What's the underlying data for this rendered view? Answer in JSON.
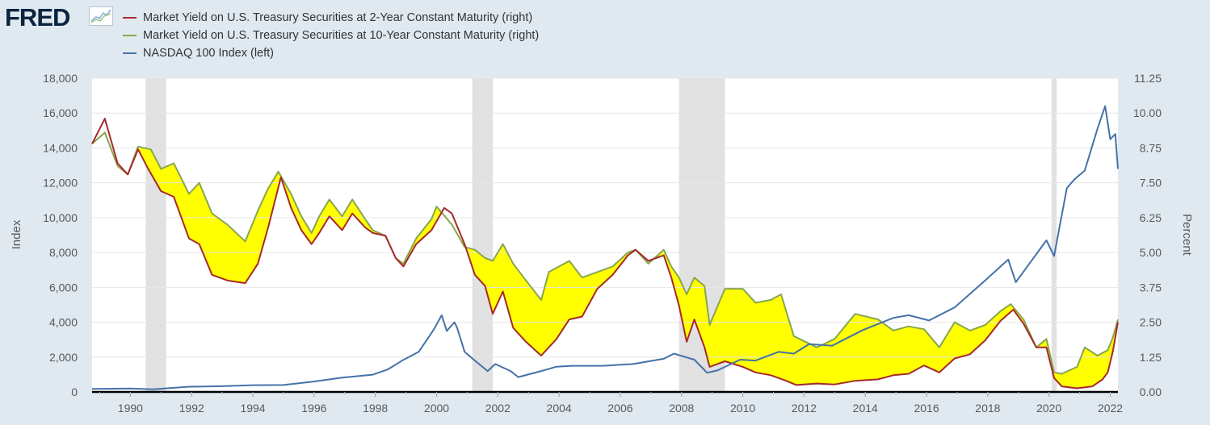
{
  "logo": {
    "text": "FRED",
    "icon": "fred-sparkline-icon"
  },
  "colors": {
    "background": "#e1e9f0",
    "plot_background": "#ffffff",
    "series_2y": "#a52a2a",
    "series_10y": "#89a54e",
    "series_nasdaq": "#4572a7",
    "fill_spread": "#ffff00",
    "recession": "#e1e1e1"
  },
  "chart_data": {
    "type": "line",
    "title": "",
    "x_axis": {
      "tick_labels": [
        "1990",
        "1992",
        "1994",
        "1996",
        "1998",
        "2000",
        "2002",
        "2004",
        "2006",
        "2008",
        "2010",
        "2012",
        "2014",
        "2016",
        "2018",
        "2020",
        "2022"
      ],
      "range": [
        "1988-10",
        "2022-04"
      ]
    },
    "y_left": {
      "label": "Index",
      "ticks": [
        "0",
        "2,000",
        "4,000",
        "6,000",
        "8,000",
        "10,000",
        "12,000",
        "14,000",
        "16,000",
        "18,000"
      ],
      "range": [
        0,
        18000
      ]
    },
    "y_right": {
      "label": "Percent",
      "ticks": [
        "0.00",
        "1.25",
        "2.50",
        "3.75",
        "5.00",
        "6.25",
        "7.50",
        "8.75",
        "10.00",
        "11.25"
      ],
      "range": [
        0,
        11.25
      ]
    },
    "legend": {
      "placement": "top-left",
      "entries": [
        "Market Yield on U.S. Treasury Securities at 2-Year Constant Maturity (right)",
        "Market Yield on U.S. Treasury Securities at 10-Year Constant Maturity (right)",
        "NASDAQ 100 Index (left)"
      ]
    },
    "recessions": [
      [
        "1990-07",
        "1991-03"
      ],
      [
        "2001-03",
        "2001-11"
      ],
      [
        "2007-12",
        "2009-06"
      ],
      [
        "2020-02",
        "2020-04"
      ]
    ],
    "series": [
      {
        "name": "Market Yield on U.S. Treasury Securities at 2-Year Constant Maturity (right)",
        "axis": "right",
        "points": [
          [
            "1988-10",
            8.9
          ],
          [
            "1989-03",
            9.8
          ],
          [
            "1989-08",
            8.2
          ],
          [
            "1989-12",
            7.8
          ],
          [
            "1990-04",
            8.7
          ],
          [
            "1990-08",
            8.0
          ],
          [
            "1991-01",
            7.2
          ],
          [
            "1991-06",
            7.0
          ],
          [
            "1991-12",
            5.5
          ],
          [
            "1992-04",
            5.3
          ],
          [
            "1992-09",
            4.2
          ],
          [
            "1993-03",
            4.0
          ],
          [
            "1993-10",
            3.9
          ],
          [
            "1994-03",
            4.6
          ],
          [
            "1994-07",
            5.9
          ],
          [
            "1994-12",
            7.7
          ],
          [
            "1995-04",
            6.6
          ],
          [
            "1995-08",
            5.8
          ],
          [
            "1995-12",
            5.3
          ],
          [
            "1996-03",
            5.7
          ],
          [
            "1996-07",
            6.3
          ],
          [
            "1996-12",
            5.8
          ],
          [
            "1997-04",
            6.4
          ],
          [
            "1997-09",
            5.9
          ],
          [
            "1997-12",
            5.7
          ],
          [
            "1998-05",
            5.6
          ],
          [
            "1998-09",
            4.8
          ],
          [
            "1998-12",
            4.5
          ],
          [
            "1999-05",
            5.3
          ],
          [
            "1999-11",
            5.8
          ],
          [
            "2000-04",
            6.6
          ],
          [
            "2000-07",
            6.4
          ],
          [
            "2000-12",
            5.3
          ],
          [
            "2001-04",
            4.2
          ],
          [
            "2001-08",
            3.8
          ],
          [
            "2001-11",
            2.8
          ],
          [
            "2002-03",
            3.6
          ],
          [
            "2002-07",
            2.3
          ],
          [
            "2002-12",
            1.8
          ],
          [
            "2003-06",
            1.3
          ],
          [
            "2003-12",
            1.9
          ],
          [
            "2004-05",
            2.6
          ],
          [
            "2004-10",
            2.7
          ],
          [
            "2005-04",
            3.7
          ],
          [
            "2005-10",
            4.2
          ],
          [
            "2006-04",
            4.9
          ],
          [
            "2006-07",
            5.1
          ],
          [
            "2006-12",
            4.7
          ],
          [
            "2007-06",
            4.9
          ],
          [
            "2007-09",
            4.1
          ],
          [
            "2007-12",
            3.1
          ],
          [
            "2008-03",
            1.8
          ],
          [
            "2008-06",
            2.6
          ],
          [
            "2008-10",
            1.6
          ],
          [
            "2008-12",
            0.9
          ],
          [
            "2009-06",
            1.1
          ],
          [
            "2010-01",
            0.9
          ],
          [
            "2010-06",
            0.7
          ],
          [
            "2010-12",
            0.6
          ],
          [
            "2011-06",
            0.4
          ],
          [
            "2011-10",
            0.25
          ],
          [
            "2012-06",
            0.3
          ],
          [
            "2013-01",
            0.27
          ],
          [
            "2013-09",
            0.4
          ],
          [
            "2014-06",
            0.45
          ],
          [
            "2014-12",
            0.6
          ],
          [
            "2015-06",
            0.65
          ],
          [
            "2015-12",
            0.95
          ],
          [
            "2016-06",
            0.7
          ],
          [
            "2016-12",
            1.2
          ],
          [
            "2017-06",
            1.35
          ],
          [
            "2017-12",
            1.85
          ],
          [
            "2018-06",
            2.55
          ],
          [
            "2018-11",
            2.95
          ],
          [
            "2019-03",
            2.45
          ],
          [
            "2019-08",
            1.6
          ],
          [
            "2019-12",
            1.6
          ],
          [
            "2020-03",
            0.5
          ],
          [
            "2020-06",
            0.2
          ],
          [
            "2020-12",
            0.13
          ],
          [
            "2021-06",
            0.2
          ],
          [
            "2021-10",
            0.45
          ],
          [
            "2021-12",
            0.7
          ],
          [
            "2022-02",
            1.45
          ],
          [
            "2022-04",
            2.5
          ]
        ]
      },
      {
        "name": "Market Yield on U.S. Treasury Securities at 10-Year Constant Maturity (right)",
        "axis": "right",
        "points": [
          [
            "1988-10",
            8.9
          ],
          [
            "1989-03",
            9.3
          ],
          [
            "1989-08",
            8.1
          ],
          [
            "1989-12",
            7.8
          ],
          [
            "1990-04",
            8.8
          ],
          [
            "1990-09",
            8.7
          ],
          [
            "1991-01",
            8.0
          ],
          [
            "1991-06",
            8.2
          ],
          [
            "1991-12",
            7.1
          ],
          [
            "1992-04",
            7.5
          ],
          [
            "1992-09",
            6.4
          ],
          [
            "1993-03",
            6.0
          ],
          [
            "1993-10",
            5.4
          ],
          [
            "1994-03",
            6.5
          ],
          [
            "1994-07",
            7.3
          ],
          [
            "1994-11",
            7.9
          ],
          [
            "1995-04",
            7.1
          ],
          [
            "1995-08",
            6.3
          ],
          [
            "1995-12",
            5.7
          ],
          [
            "1996-03",
            6.3
          ],
          [
            "1996-07",
            6.9
          ],
          [
            "1996-12",
            6.3
          ],
          [
            "1997-04",
            6.9
          ],
          [
            "1997-09",
            6.2
          ],
          [
            "1997-12",
            5.8
          ],
          [
            "1998-05",
            5.6
          ],
          [
            "1998-09",
            4.8
          ],
          [
            "1998-12",
            4.6
          ],
          [
            "1999-05",
            5.5
          ],
          [
            "1999-11",
            6.2
          ],
          [
            "2000-01",
            6.65
          ],
          [
            "2000-07",
            6.0
          ],
          [
            "2000-12",
            5.2
          ],
          [
            "2001-04",
            5.1
          ],
          [
            "2001-08",
            4.8
          ],
          [
            "2001-11",
            4.7
          ],
          [
            "2002-03",
            5.3
          ],
          [
            "2002-07",
            4.6
          ],
          [
            "2002-12",
            4.0
          ],
          [
            "2003-06",
            3.3
          ],
          [
            "2003-09",
            4.3
          ],
          [
            "2004-05",
            4.7
          ],
          [
            "2004-10",
            4.1
          ],
          [
            "2005-04",
            4.3
          ],
          [
            "2005-10",
            4.5
          ],
          [
            "2006-04",
            5.0
          ],
          [
            "2006-07",
            5.1
          ],
          [
            "2006-12",
            4.6
          ],
          [
            "2007-06",
            5.1
          ],
          [
            "2007-09",
            4.5
          ],
          [
            "2007-12",
            4.1
          ],
          [
            "2008-03",
            3.5
          ],
          [
            "2008-06",
            4.1
          ],
          [
            "2008-10",
            3.8
          ],
          [
            "2008-12",
            2.4
          ],
          [
            "2009-06",
            3.7
          ],
          [
            "2010-01",
            3.7
          ],
          [
            "2010-06",
            3.2
          ],
          [
            "2010-12",
            3.3
          ],
          [
            "2011-04",
            3.5
          ],
          [
            "2011-09",
            2.0
          ],
          [
            "2012-06",
            1.6
          ],
          [
            "2013-01",
            1.9
          ],
          [
            "2013-09",
            2.8
          ],
          [
            "2014-06",
            2.6
          ],
          [
            "2014-12",
            2.2
          ],
          [
            "2015-06",
            2.35
          ],
          [
            "2015-12",
            2.25
          ],
          [
            "2016-06",
            1.6
          ],
          [
            "2016-12",
            2.5
          ],
          [
            "2017-06",
            2.2
          ],
          [
            "2017-12",
            2.4
          ],
          [
            "2018-06",
            2.9
          ],
          [
            "2018-10",
            3.15
          ],
          [
            "2019-03",
            2.6
          ],
          [
            "2019-08",
            1.6
          ],
          [
            "2019-12",
            1.9
          ],
          [
            "2020-03",
            0.7
          ],
          [
            "2020-06",
            0.65
          ],
          [
            "2020-12",
            0.9
          ],
          [
            "2021-03",
            1.6
          ],
          [
            "2021-08",
            1.3
          ],
          [
            "2021-12",
            1.5
          ],
          [
            "2022-02",
            1.95
          ],
          [
            "2022-04",
            2.6
          ]
        ]
      },
      {
        "name": "NASDAQ 100 Index (left)",
        "axis": "left",
        "points": [
          [
            "1988-10",
            170
          ],
          [
            "1990-01",
            200
          ],
          [
            "1990-10",
            150
          ],
          [
            "1991-12",
            300
          ],
          [
            "1993-01",
            330
          ],
          [
            "1994-01",
            390
          ],
          [
            "1995-01",
            400
          ],
          [
            "1995-12",
            580
          ],
          [
            "1996-12",
            820
          ],
          [
            "1997-12",
            990
          ],
          [
            "1998-06",
            1300
          ],
          [
            "1998-12",
            1840
          ],
          [
            "1999-06",
            2300
          ],
          [
            "1999-12",
            3600
          ],
          [
            "2000-03",
            4400
          ],
          [
            "2000-05",
            3500
          ],
          [
            "2000-08",
            4000
          ],
          [
            "2000-09",
            3700
          ],
          [
            "2000-12",
            2300
          ],
          [
            "2001-04",
            1800
          ],
          [
            "2001-09",
            1200
          ],
          [
            "2001-12",
            1600
          ],
          [
            "2002-06",
            1200
          ],
          [
            "2002-09",
            850
          ],
          [
            "2003-06",
            1200
          ],
          [
            "2003-12",
            1450
          ],
          [
            "2004-06",
            1500
          ],
          [
            "2005-06",
            1500
          ],
          [
            "2006-06",
            1600
          ],
          [
            "2007-06",
            1900
          ],
          [
            "2007-10",
            2200
          ],
          [
            "2008-06",
            1850
          ],
          [
            "2008-11",
            1100
          ],
          [
            "2009-03",
            1230
          ],
          [
            "2009-12",
            1850
          ],
          [
            "2010-06",
            1800
          ],
          [
            "2011-03",
            2300
          ],
          [
            "2011-09",
            2200
          ],
          [
            "2012-03",
            2750
          ],
          [
            "2012-12",
            2650
          ],
          [
            "2013-12",
            3550
          ],
          [
            "2014-12",
            4250
          ],
          [
            "2015-06",
            4400
          ],
          [
            "2016-02",
            4100
          ],
          [
            "2016-12",
            4850
          ],
          [
            "2017-12",
            6400
          ],
          [
            "2018-09",
            7600
          ],
          [
            "2018-12",
            6300
          ],
          [
            "2019-12",
            8700
          ],
          [
            "2020-03",
            7800
          ],
          [
            "2020-08",
            11700
          ],
          [
            "2020-11",
            12200
          ],
          [
            "2021-03",
            12700
          ],
          [
            "2021-08",
            15100
          ],
          [
            "2021-11",
            16400
          ],
          [
            "2022-01",
            14500
          ],
          [
            "2022-03",
            14800
          ],
          [
            "2022-04",
            12800
          ]
        ]
      }
    ],
    "fill_between": "spread between 10-Year and 2-Year yields, shaded yellow"
  }
}
